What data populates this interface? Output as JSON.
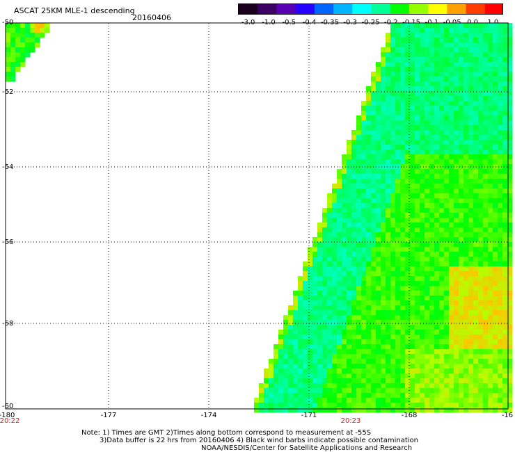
{
  "header": {
    "title": "ASCAT 25KM MLE-1 descending",
    "date": "20160406"
  },
  "colorbar": {
    "labels": [
      "-3.0",
      "-1.0",
      "-0.5",
      "-0.4",
      "-0.35",
      "-0.3",
      "-0.25",
      "-0.2",
      "-0.15",
      "-0.1",
      "-0.05",
      "0.0",
      "1.0"
    ],
    "colors": [
      "#1a001a",
      "#3c0064",
      "#5a00b4",
      "#2800ff",
      "#0064ff",
      "#00b4ff",
      "#00ffff",
      "#00ff96",
      "#00ff00",
      "#96ff00",
      "#ffff00",
      "#ffa000",
      "#ff3c00",
      "#ff0000"
    ]
  },
  "map": {
    "lat_labels": [
      "-50",
      "-52",
      "-54",
      "-56",
      "-58",
      "-60"
    ],
    "lon_labels": [
      "-180",
      "-177",
      "-174",
      "-171",
      "-168",
      "-16"
    ],
    "time_labels": [
      "20:22",
      "20:23"
    ]
  },
  "notes": {
    "line1": "Note: 1) Times are GMT 2)Times along bottom correspond to measurement at -55S",
    "line2": "3)Data buffer is 22 hrs from 20160406 4) Black wind barbs indicate possible contamination",
    "line3": "NOAA/NESDIS/Center for Satellite Applications and Research"
  }
}
